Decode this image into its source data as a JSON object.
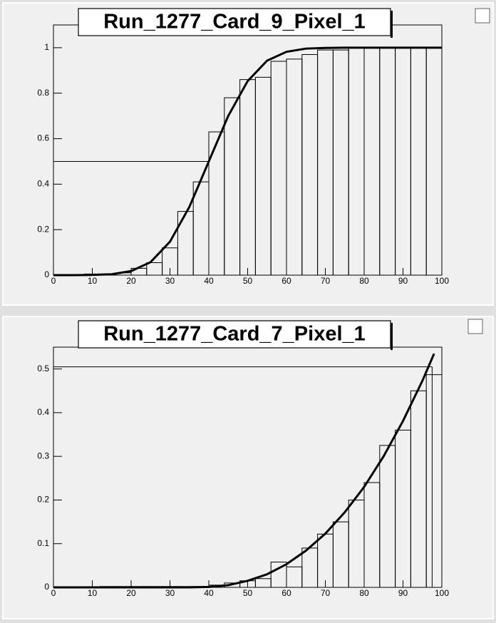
{
  "chart_data": [
    {
      "type": "histogram",
      "title": "Run_1277_Card_9_Pixel_1",
      "bins": [
        0,
        4,
        8,
        12,
        16,
        20,
        24,
        28,
        32,
        36,
        40,
        44,
        48,
        52,
        56,
        60,
        64,
        68,
        72,
        76,
        80,
        84,
        88,
        92,
        96,
        100
      ],
      "values": [
        0,
        0.002,
        0.005,
        0.005,
        0.01,
        0.03,
        0.055,
        0.12,
        0.28,
        0.41,
        0.63,
        0.78,
        0.86,
        0.87,
        0.94,
        0.95,
        0.97,
        0.99,
        0.99,
        1.0,
        1.0,
        1.0,
        1.0,
        1.0,
        1.0
      ],
      "fit": {
        "x": [
          0,
          5,
          10,
          15,
          20,
          25,
          30,
          35,
          40,
          45,
          50,
          55,
          60,
          65,
          70,
          75,
          80,
          85,
          90,
          95,
          100
        ],
        "values": [
          0,
          0,
          0.001,
          0.004,
          0.018,
          0.057,
          0.147,
          0.3,
          0.5,
          0.7,
          0.853,
          0.943,
          0.982,
          0.996,
          0.999,
          1,
          1,
          1,
          1,
          1,
          1
        ]
      },
      "crosshair": {
        "x": 40,
        "y": 0.5
      },
      "xlim": [
        0,
        100
      ],
      "ylim": [
        0,
        1.1
      ],
      "xticks": [
        0,
        10,
        20,
        30,
        40,
        50,
        60,
        70,
        80,
        90,
        100
      ],
      "yticks": [
        0,
        0.2,
        0.4,
        0.6,
        0.8,
        1
      ]
    },
    {
      "type": "histogram",
      "title": "Run_1277_Card_7_Pixel_1",
      "bins": [
        0,
        4,
        8,
        12,
        16,
        20,
        24,
        28,
        32,
        36,
        40,
        44,
        48,
        52,
        56,
        60,
        64,
        68,
        72,
        76,
        80,
        84,
        88,
        92,
        96,
        100
      ],
      "values": [
        0,
        0,
        0,
        0.002,
        0.002,
        0.002,
        0.002,
        0.002,
        0.002,
        0.002,
        0.005,
        0.01,
        0.015,
        0.02,
        0.058,
        0.047,
        0.09,
        0.122,
        0.15,
        0.2,
        0.24,
        0.325,
        0.36,
        0.45,
        0.487
      ],
      "fit": {
        "x": [
          0,
          5,
          10,
          15,
          20,
          25,
          30,
          35,
          40,
          45,
          50,
          55,
          60,
          65,
          70,
          75,
          80,
          85,
          90,
          95,
          98
        ],
        "values": [
          0,
          0,
          0,
          0,
          0,
          0,
          0,
          0,
          0.001,
          0.005,
          0.015,
          0.03,
          0.053,
          0.084,
          0.123,
          0.172,
          0.23,
          0.3,
          0.381,
          0.473,
          0.535
        ]
      },
      "crosshair": {
        "x": 97.5,
        "y": 0.505
      },
      "xlim": [
        0,
        100
      ],
      "ylim": [
        0,
        0.55
      ],
      "xticks": [
        0,
        10,
        20,
        30,
        40,
        50,
        60,
        70,
        80,
        90,
        100
      ],
      "yticks": [
        0,
        0.1,
        0.2,
        0.3,
        0.4,
        0.5
      ]
    }
  ]
}
